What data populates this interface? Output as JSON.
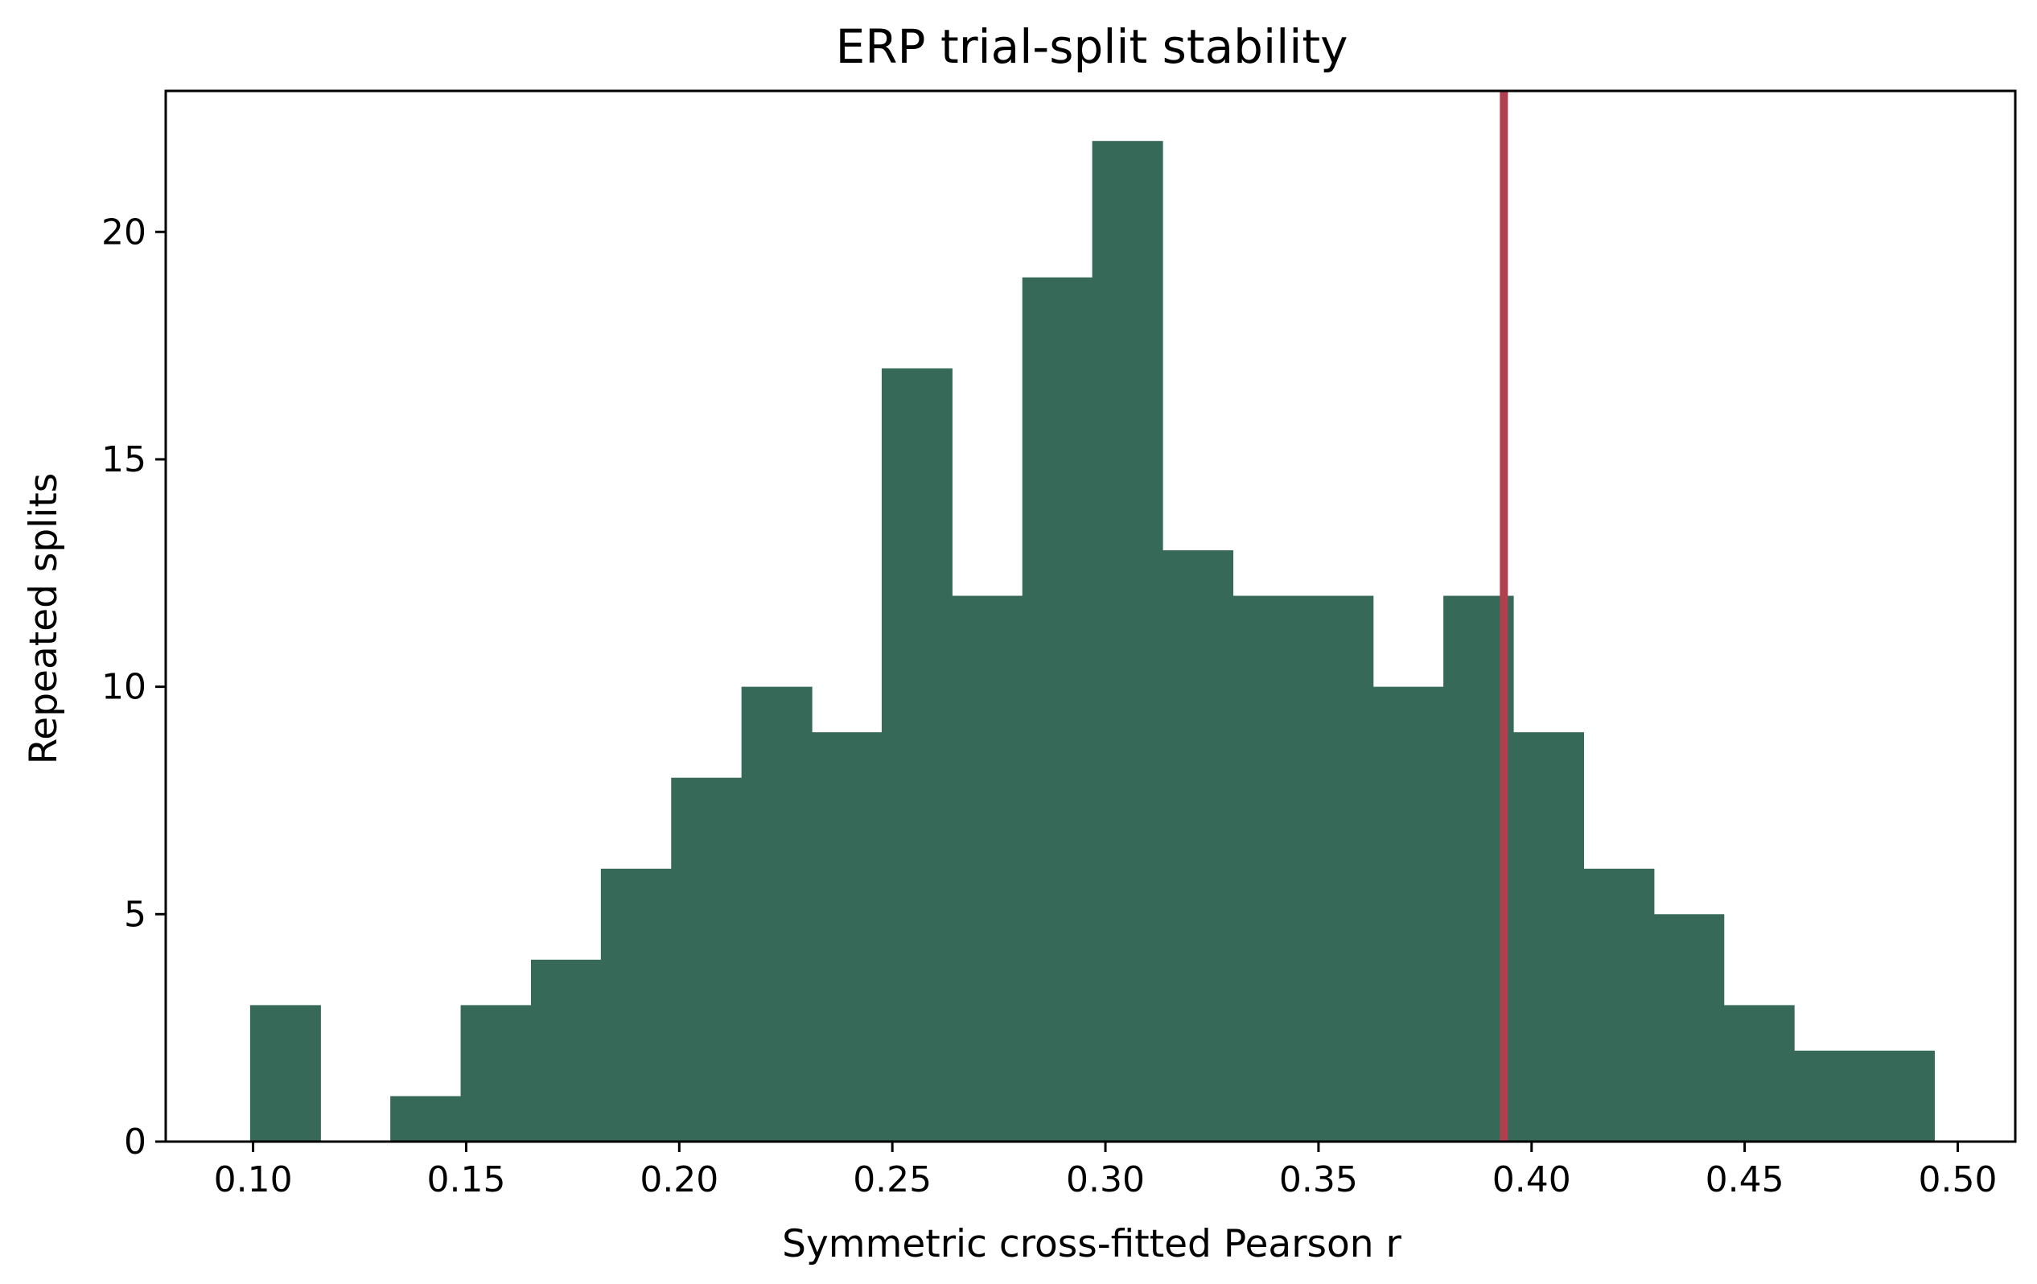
{
  "chart_data": {
    "type": "bar",
    "title": "ERP trial-split stability",
    "xlabel": "Symmetric cross-fitted Pearson r",
    "ylabel": "Repeated splits",
    "xlim": [
      0.0795,
      0.5135
    ],
    "ylim": [
      0,
      23.1
    ],
    "x_ticks": [
      0.1,
      0.15,
      0.2,
      0.25,
      0.3,
      0.35,
      0.4,
      0.45,
      0.5
    ],
    "x_tick_labels": [
      "0.10",
      "0.15",
      "0.20",
      "0.25",
      "0.30",
      "0.35",
      "0.40",
      "0.45",
      "0.50"
    ],
    "y_ticks": [
      0,
      5,
      10,
      15,
      20
    ],
    "y_tick_labels": [
      "0",
      "5",
      "10",
      "15",
      "20"
    ],
    "bin_edges": [
      0.0993,
      0.1158,
      0.1322,
      0.1487,
      0.1652,
      0.1816,
      0.1981,
      0.2146,
      0.2311,
      0.2475,
      0.264,
      0.2805,
      0.2969,
      0.3134,
      0.3299,
      0.3463,
      0.3628,
      0.3793,
      0.3957,
      0.4122,
      0.4287,
      0.4451,
      0.4616,
      0.4781,
      0.4945
    ],
    "counts": [
      3,
      0,
      1,
      3,
      4,
      6,
      8,
      10,
      9,
      17,
      12,
      19,
      22,
      13,
      12,
      12,
      10,
      12,
      9,
      6,
      5,
      3,
      2,
      2
    ],
    "reference_line": {
      "x": 0.3935
    },
    "grid": false,
    "colors": {
      "bar": "#376959",
      "reference_line": "#b0404f",
      "axes": "#000000"
    }
  }
}
